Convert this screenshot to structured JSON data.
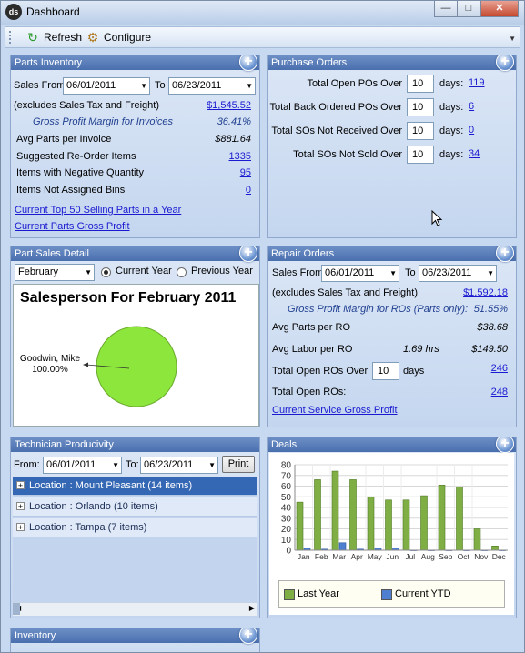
{
  "window": {
    "title": "Dashboard",
    "app_icon": "ds"
  },
  "toolbar": {
    "refresh": "Refresh",
    "configure": "Configure"
  },
  "parts_inventory": {
    "header": "Parts Inventory",
    "sales_from_label": "Sales From",
    "from_date": "06/01/2011",
    "to_label": "To",
    "to_date": "06/23/2011",
    "excludes_label": "(excludes Sales Tax and Freight)",
    "excludes_value": "$1,545.52",
    "gpm_label": "Gross Profit Margin for Invoices",
    "gpm_value": "36.41%",
    "avg_parts_label": "Avg Parts per Invoice",
    "avg_parts_value": "$881.64",
    "reorder_label": "Suggested Re-Order Items",
    "reorder_value": "1335",
    "negative_label": "Items with Negative Quantity",
    "negative_value": "95",
    "bins_label": "Items Not Assigned Bins",
    "bins_value": "0",
    "link_top50": "Current Top 50 Selling Parts in a Year",
    "link_gross": "Current Parts Gross Profit"
  },
  "purchase_orders": {
    "header": "Purchase Orders",
    "rows": [
      {
        "label": "Total Open POs Over",
        "days": "10",
        "days_label": "days:",
        "value": "119"
      },
      {
        "label": "Total Back Ordered POs Over",
        "days": "10",
        "days_label": "days:",
        "value": "6"
      },
      {
        "label": "Total SOs Not Received Over",
        "days": "10",
        "days_label": "days:",
        "value": "0"
      },
      {
        "label": "Total SOs Not Sold Over",
        "days": "10",
        "days_label": "days:",
        "value": "34"
      }
    ]
  },
  "part_sales": {
    "header": "Part Sales Detail",
    "month": "February",
    "current_year": "Current Year",
    "previous_year": "Previous Year",
    "chart_title": "Salesperson For February 2011"
  },
  "repair_orders": {
    "header": "Repair Orders",
    "sales_from_label": "Sales From",
    "from_date": "06/01/2011",
    "to_label": "To",
    "to_date": "06/23/2011",
    "excludes_label": "(excludes Sales Tax and Freight)",
    "excludes_value": "$1,592.18",
    "gpm_label": "Gross Profit Margin for ROs (Parts only):",
    "gpm_value": "51.55%",
    "avg_parts_label": "Avg Parts per RO",
    "avg_parts_value": "$38.68",
    "avg_labor_label": "Avg Labor per RO",
    "avg_labor_hrs": "1.69 hrs",
    "avg_labor_value": "$149.50",
    "open_over_label": "Total Open ROs Over",
    "open_over_days": "10",
    "open_over_days_label": "days",
    "open_over_value": "246",
    "open_label": "Total Open ROs:",
    "open_value": "248",
    "link_gross": "Current Service Gross Profit"
  },
  "technician": {
    "header": "Technician Producivity",
    "from_label": "From:",
    "from_date": "06/01/2011",
    "to_label": "To:",
    "to_date": "06/23/2011",
    "print": "Print",
    "locations": [
      {
        "label": "Location : Mount Pleasant (14 items)",
        "selected": true
      },
      {
        "label": "Location : Orlando (10 items)",
        "selected": false
      },
      {
        "label": "Location : Tampa (7 items)",
        "selected": false
      }
    ]
  },
  "deals": {
    "header": "Deals"
  },
  "inventory": {
    "header": "Inventory"
  },
  "chart_data": [
    {
      "type": "pie",
      "title": "Salesperson For February 2011",
      "slices": [
        {
          "label": "Goodwin, Mike",
          "value": 100.0,
          "display": "100.00%"
        }
      ],
      "colors": [
        "#8ce63c"
      ]
    },
    {
      "type": "bar",
      "categories": [
        "Jan",
        "Feb",
        "Mar",
        "Apr",
        "May",
        "Jun",
        "Jul",
        "Aug",
        "Sep",
        "Oct",
        "Nov",
        "Dec"
      ],
      "series": [
        {
          "name": "Last Year",
          "values": [
            45,
            66,
            74,
            66,
            50,
            47,
            47,
            51,
            61,
            59,
            20,
            4
          ],
          "color": "#7fae44"
        },
        {
          "name": "Current YTD",
          "values": [
            2,
            1,
            7,
            1,
            2,
            2,
            0,
            0,
            0,
            0,
            0,
            0
          ],
          "color": "#4f7fd0"
        }
      ],
      "yticks": [
        "0",
        "10",
        "20",
        "30",
        "40",
        "50",
        "60",
        "70",
        "80"
      ],
      "ylim": [
        0,
        80
      ],
      "legend": "bottom",
      "grid": true
    }
  ]
}
